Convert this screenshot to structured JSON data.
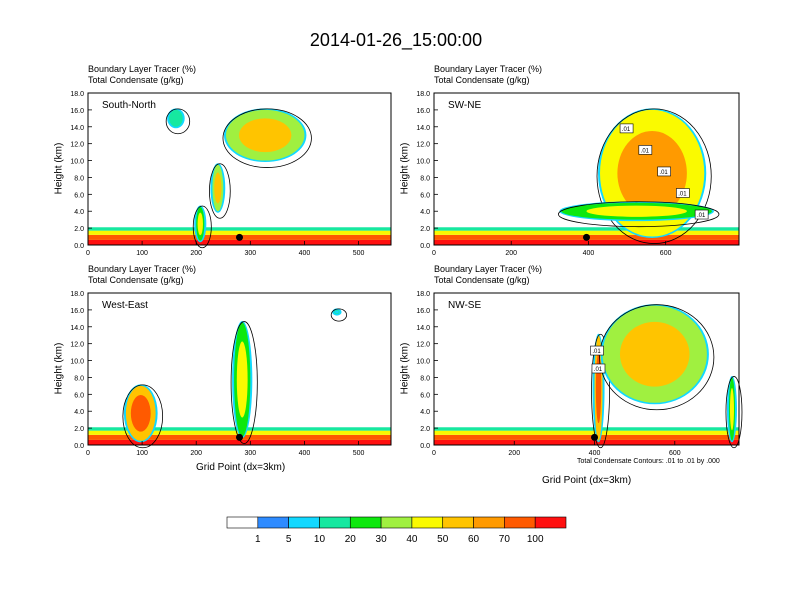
{
  "title": "2014-01-26_15:00:00",
  "panel_header": {
    "line1": "Boundary Layer Tracer    (%)",
    "line2": "Total Condensate   (g/kg)"
  },
  "y_axis_title": "Height (km)",
  "x_axis_title": "Grid Point (dx=3km)",
  "footnote": "Total Condensate Contours: .01 to .01 by .000",
  "colorbar": {
    "colors": [
      "#ffffff",
      "#2e8bff",
      "#12d8ff",
      "#16e8a0",
      "#0ee80e",
      "#a0f040",
      "#fafa00",
      "#ffc400",
      "#ff9a00",
      "#ff5a00",
      "#ff1010"
    ],
    "labels": [
      "1",
      "5",
      "10",
      "20",
      "30",
      "40",
      "50",
      "60",
      "70",
      "100"
    ]
  },
  "chart_data": [
    {
      "type": "heatmap",
      "name": "South-North",
      "ylabel": "Height (km)",
      "xlim": [
        0,
        560
      ],
      "ylim": [
        0,
        18
      ],
      "xticks": [
        "0",
        "100",
        "200",
        "300",
        "400",
        "500"
      ],
      "yticks": [
        "0.0",
        "2.0",
        "4.0",
        "6.0",
        "8.0",
        "10.0",
        "12.0",
        "14.0",
        "16.0",
        "18.0"
      ],
      "marker_x": 280,
      "cloud_features": [
        {
          "x": [
            200,
            215
          ],
          "z": [
            0.5,
            4.5
          ],
          "pct": 40
        },
        {
          "x": [
            230,
            250
          ],
          "z": [
            4,
            9.5
          ],
          "pct": 50
        },
        {
          "x": [
            255,
            400
          ],
          "z": [
            10,
            16
          ],
          "pct": 50
        },
        {
          "x": [
            150,
            175
          ],
          "z": [
            14,
            16
          ],
          "pct": 10
        }
      ],
      "contour_labels": []
    },
    {
      "type": "heatmap",
      "name": "SW-NE",
      "ylabel": "Height (km)",
      "xlim": [
        0,
        790
      ],
      "ylim": [
        0,
        18
      ],
      "xticks": [
        "0",
        "200",
        "400",
        "600"
      ],
      "yticks": [
        "0.0",
        "2.0",
        "4.0",
        "6.0",
        "8.0",
        "10.0",
        "12.0",
        "14.0",
        "16.0",
        "18.0"
      ],
      "marker_x": 395,
      "cloud_features": [
        {
          "x": [
            430,
            700
          ],
          "z": [
            1,
            16
          ],
          "pct": 60
        },
        {
          "x": [
            330,
            720
          ],
          "z": [
            3,
            5
          ],
          "pct": 40
        }
      ],
      "contour_labels": [
        ".01",
        ".01",
        ".01",
        ".01",
        ".01"
      ]
    },
    {
      "type": "heatmap",
      "name": "West-East",
      "ylabel": "Height (km)",
      "xlim": [
        0,
        560
      ],
      "ylim": [
        0,
        18
      ],
      "xticks": [
        "0",
        "100",
        "200",
        "300",
        "400",
        "500"
      ],
      "yticks": [
        "0.0",
        "2.0",
        "4.0",
        "6.0",
        "8.0",
        "10.0",
        "12.0",
        "14.0",
        "16.0",
        "18.0"
      ],
      "marker_x": 280,
      "cloud_features": [
        {
          "x": [
            70,
            125
          ],
          "z": [
            0.5,
            7
          ],
          "pct": 70
        },
        {
          "x": [
            270,
            300
          ],
          "z": [
            1,
            14.5
          ],
          "pct": 40
        },
        {
          "x": [
            455,
            465
          ],
          "z": [
            15.5,
            16
          ],
          "pct": 5
        }
      ],
      "contour_labels": []
    },
    {
      "type": "heatmap",
      "name": "NW-SE",
      "ylabel": "Height (km)",
      "xlim": [
        0,
        760
      ],
      "ylim": [
        0,
        18
      ],
      "xticks": [
        "0",
        "200",
        "400",
        "600"
      ],
      "yticks": [
        "0.0",
        "2.0",
        "4.0",
        "6.0",
        "8.0",
        "10.0",
        "12.0",
        "14.0",
        "16.0",
        "18.0"
      ],
      "marker_x": 400,
      "cloud_features": [
        {
          "x": [
            400,
            420
          ],
          "z": [
            0.5,
            13
          ],
          "pct": 70
        },
        {
          "x": [
            420,
            680
          ],
          "z": [
            5,
            16.5
          ],
          "pct": 50
        },
        {
          "x": [
            735,
            750
          ],
          "z": [
            0.5,
            8
          ],
          "pct": 40
        }
      ],
      "contour_labels": [
        ".01",
        ".01"
      ]
    }
  ]
}
